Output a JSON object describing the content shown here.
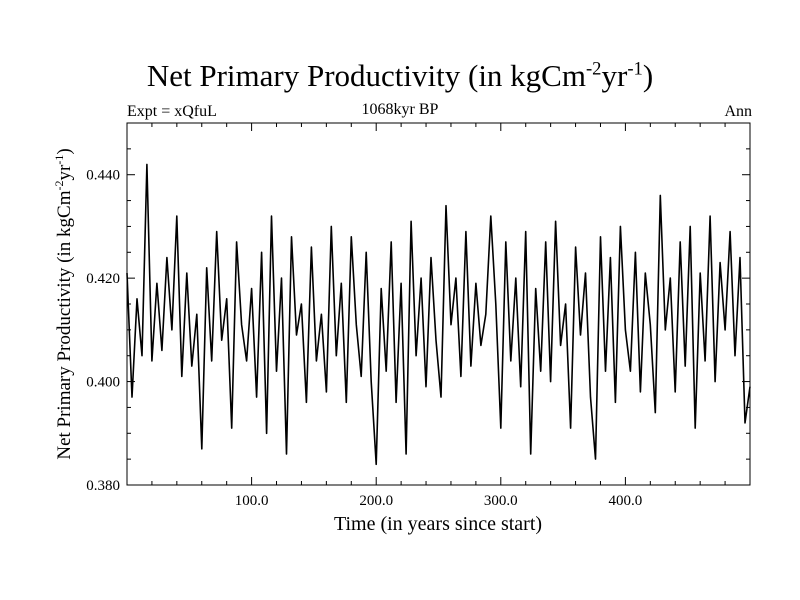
{
  "chart_data": {
    "type": "line",
    "title": "Net Primary Productivity (in kgCm",
    "title_sup1": "-2",
    "title_mid": "yr",
    "title_sup2": "-1",
    "title_end": ")",
    "expt_label": "Expt = xQfuL",
    "period_label": "1068kyr BP",
    "season_label": "Ann",
    "xlabel": "Time (in years since start)",
    "ylabel": "Net Primary Productivity (in kgCm",
    "ylabel_sup1": "-2",
    "ylabel_mid": "yr",
    "ylabel_sup2": "-1",
    "ylabel_end": ")",
    "xlim": [
      0,
      500
    ],
    "ylim": [
      0.38,
      0.45
    ],
    "xticks": [
      {
        "value": 100,
        "label": "100.0"
      },
      {
        "value": 200,
        "label": "200.0"
      },
      {
        "value": 300,
        "label": "300.0"
      },
      {
        "value": 400,
        "label": "400.0"
      }
    ],
    "yticks": [
      {
        "value": 0.38,
        "label": "0.380"
      },
      {
        "value": 0.4,
        "label": "0.400"
      },
      {
        "value": 0.42,
        "label": "0.420"
      },
      {
        "value": 0.44,
        "label": "0.440"
      }
    ],
    "line_color": "#000000",
    "series": [
      {
        "name": "NPP",
        "x": [
          0,
          4,
          8,
          12,
          16,
          20,
          24,
          28,
          32,
          36,
          40,
          44,
          48,
          52,
          56,
          60,
          64,
          68,
          72,
          76,
          80,
          84,
          88,
          92,
          96,
          100,
          104,
          108,
          112,
          116,
          120,
          124,
          128,
          132,
          136,
          140,
          144,
          148,
          152,
          156,
          160,
          164,
          168,
          172,
          176,
          180,
          184,
          188,
          192,
          196,
          200,
          204,
          208,
          212,
          216,
          220,
          224,
          228,
          232,
          236,
          240,
          244,
          248,
          252,
          256,
          260,
          264,
          268,
          272,
          276,
          280,
          284,
          288,
          292,
          296,
          300,
          304,
          308,
          312,
          316,
          320,
          324,
          328,
          332,
          336,
          340,
          344,
          348,
          352,
          356,
          360,
          364,
          368,
          372,
          376,
          380,
          384,
          388,
          392,
          396,
          400,
          404,
          408,
          412,
          416,
          420,
          424,
          428,
          432,
          436,
          440,
          444,
          448,
          452,
          456,
          460,
          464,
          468,
          472,
          476,
          480,
          484,
          488,
          492,
          496,
          500
        ],
        "values": [
          0.421,
          0.397,
          0.416,
          0.405,
          0.442,
          0.404,
          0.419,
          0.406,
          0.424,
          0.41,
          0.432,
          0.401,
          0.421,
          0.403,
          0.413,
          0.387,
          0.422,
          0.404,
          0.429,
          0.408,
          0.416,
          0.391,
          0.427,
          0.411,
          0.404,
          0.418,
          0.397,
          0.425,
          0.39,
          0.432,
          0.402,
          0.42,
          0.386,
          0.428,
          0.409,
          0.415,
          0.396,
          0.426,
          0.404,
          0.413,
          0.398,
          0.43,
          0.405,
          0.419,
          0.396,
          0.428,
          0.411,
          0.401,
          0.425,
          0.4,
          0.384,
          0.418,
          0.402,
          0.427,
          0.396,
          0.419,
          0.386,
          0.431,
          0.405,
          0.42,
          0.399,
          0.424,
          0.408,
          0.397,
          0.434,
          0.411,
          0.42,
          0.401,
          0.429,
          0.403,
          0.419,
          0.407,
          0.413,
          0.432,
          0.415,
          0.391,
          0.427,
          0.404,
          0.42,
          0.399,
          0.429,
          0.386,
          0.418,
          0.402,
          0.427,
          0.4,
          0.431,
          0.407,
          0.415,
          0.391,
          0.426,
          0.409,
          0.421,
          0.397,
          0.385,
          0.428,
          0.402,
          0.424,
          0.396,
          0.43,
          0.41,
          0.402,
          0.425,
          0.398,
          0.421,
          0.411,
          0.394,
          0.436,
          0.41,
          0.42,
          0.398,
          0.427,
          0.403,
          0.43,
          0.391,
          0.421,
          0.404,
          0.432,
          0.4,
          0.423,
          0.41,
          0.429,
          0.405,
          0.424,
          0.392,
          0.399
        ]
      }
    ]
  }
}
